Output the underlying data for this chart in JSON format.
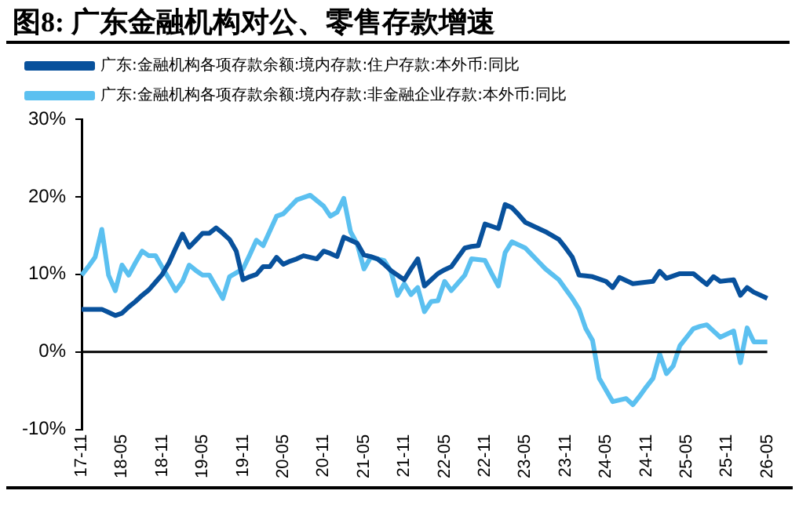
{
  "chart_data": {
    "type": "line",
    "title": "图8:  广东金融机构对公、零售存款增速",
    "legend": "top",
    "marker": "none",
    "grid": false,
    "categories": [
      "17-11",
      null,
      null,
      null,
      null,
      null,
      "18-05",
      null,
      null,
      null,
      null,
      null,
      "18-11",
      null,
      null,
      null,
      null,
      null,
      "19-05",
      null,
      null,
      null,
      null,
      null,
      "19-11",
      null,
      null,
      null,
      null,
      null,
      "20-05",
      null,
      null,
      null,
      null,
      null,
      "20-11",
      null,
      null,
      null,
      null,
      null,
      "21-05",
      null,
      null,
      null,
      null,
      null,
      "21-11",
      null,
      null,
      null,
      null,
      null,
      "22-05",
      null,
      null,
      null,
      null,
      null,
      "22-11",
      null,
      null,
      null,
      null,
      null,
      "23-05",
      null,
      null,
      null,
      null,
      null,
      "23-11",
      null,
      null,
      null,
      null,
      null,
      "24-05",
      null,
      null,
      null,
      null,
      null,
      "24-11",
      null,
      null,
      null,
      null,
      null,
      "25-05",
      null,
      null,
      null,
      null,
      null,
      "25-11",
      null,
      null,
      null,
      null,
      null,
      "26-05"
    ],
    "ylim": [
      -10,
      30
    ],
    "yticks": [
      {
        "value": -10,
        "label": "-10%"
      },
      {
        "value": 0,
        "label": "0%"
      },
      {
        "value": 10,
        "label": "10%"
      },
      {
        "value": 20,
        "label": "20%"
      },
      {
        "value": 30,
        "label": "30%"
      }
    ],
    "ref_lines": [
      {
        "axis": "y",
        "value": 0,
        "color": "#000000"
      }
    ],
    "series": [
      {
        "name": "广东:金融机构各项存款余额:境内存款:住户存款:本外币:同比",
        "color": "#08519c",
        "values": [
          5.5,
          5.5,
          5.5,
          5.5,
          5.1,
          4.7,
          5,
          5.8,
          6.5,
          7.3,
          8,
          9,
          10,
          11.5,
          13.4,
          15.2,
          13.5,
          14.4,
          15.3,
          15.3,
          16,
          15.3,
          14.5,
          13,
          9.3,
          9.7,
          10,
          11,
          11,
          12.2,
          11.3,
          11.7,
          12,
          12.4,
          12.2,
          12,
          13,
          12.7,
          12.3,
          14.8,
          14.4,
          14,
          12.5,
          12.3,
          12,
          11.3,
          10.5,
          9.9,
          9.3,
          10.7,
          12,
          8.5,
          9.3,
          10.1,
          10.6,
          11,
          12.2,
          13.4,
          13.6,
          13.7,
          16.5,
          16.2,
          15.9,
          19,
          18.6,
          17.7,
          16.7,
          16.3,
          15.9,
          15.5,
          15,
          14.5,
          13.4,
          12.2,
          9.9,
          9.8,
          9.7,
          9.4,
          9.1,
          8.3,
          9.6,
          9.2,
          8.8,
          8.9,
          9,
          9.1,
          10.4,
          9.5,
          9.8,
          10.1,
          10.1,
          10.1,
          9.4,
          8.7,
          9.7,
          9.1,
          9.2,
          9.3,
          7.3,
          8.3,
          7.7,
          7.3,
          6.9
        ]
      },
      {
        "name": "广东:金融机构各项存款余额:境内存款:非金融企业存款:本外币:同比",
        "color": "#5bc0f0",
        "values": [
          9.9,
          11,
          12.2,
          15.8,
          9.9,
          7.9,
          11.2,
          9.9,
          11.5,
          13,
          12.4,
          12.4,
          10.9,
          9.4,
          7.9,
          9.1,
          11.2,
          10.5,
          9.9,
          9.9,
          8.4,
          6.9,
          9.7,
          10.2,
          10.7,
          12.5,
          14.4,
          13.7,
          15.6,
          17.5,
          17.8,
          18.7,
          19.6,
          19.9,
          20.2,
          19.5,
          18.8,
          17.5,
          18,
          19.8,
          15.5,
          13.9,
          10.7,
          12.2,
          12,
          11.8,
          10.4,
          7.3,
          8.8,
          7.4,
          8.3,
          5.2,
          6.5,
          6.6,
          9.1,
          7.9,
          8.9,
          9.9,
          12,
          11.9,
          11.8,
          10.1,
          8.5,
          12.8,
          14.2,
          13.8,
          13.4,
          12.5,
          11.6,
          10.7,
          10,
          9.3,
          8.1,
          6.9,
          5.5,
          3,
          1.5,
          -3.4,
          -4.9,
          -6.4,
          -6.2,
          -6,
          -6.8,
          -5.7,
          -4.5,
          -3.4,
          -0.3,
          -2.8,
          -1.8,
          0.8,
          1.9,
          3,
          3.3,
          3.5,
          2.7,
          1.9,
          2.3,
          2.7,
          -1.4,
          3.1,
          1.3,
          1.3,
          1.3
        ]
      }
    ]
  }
}
